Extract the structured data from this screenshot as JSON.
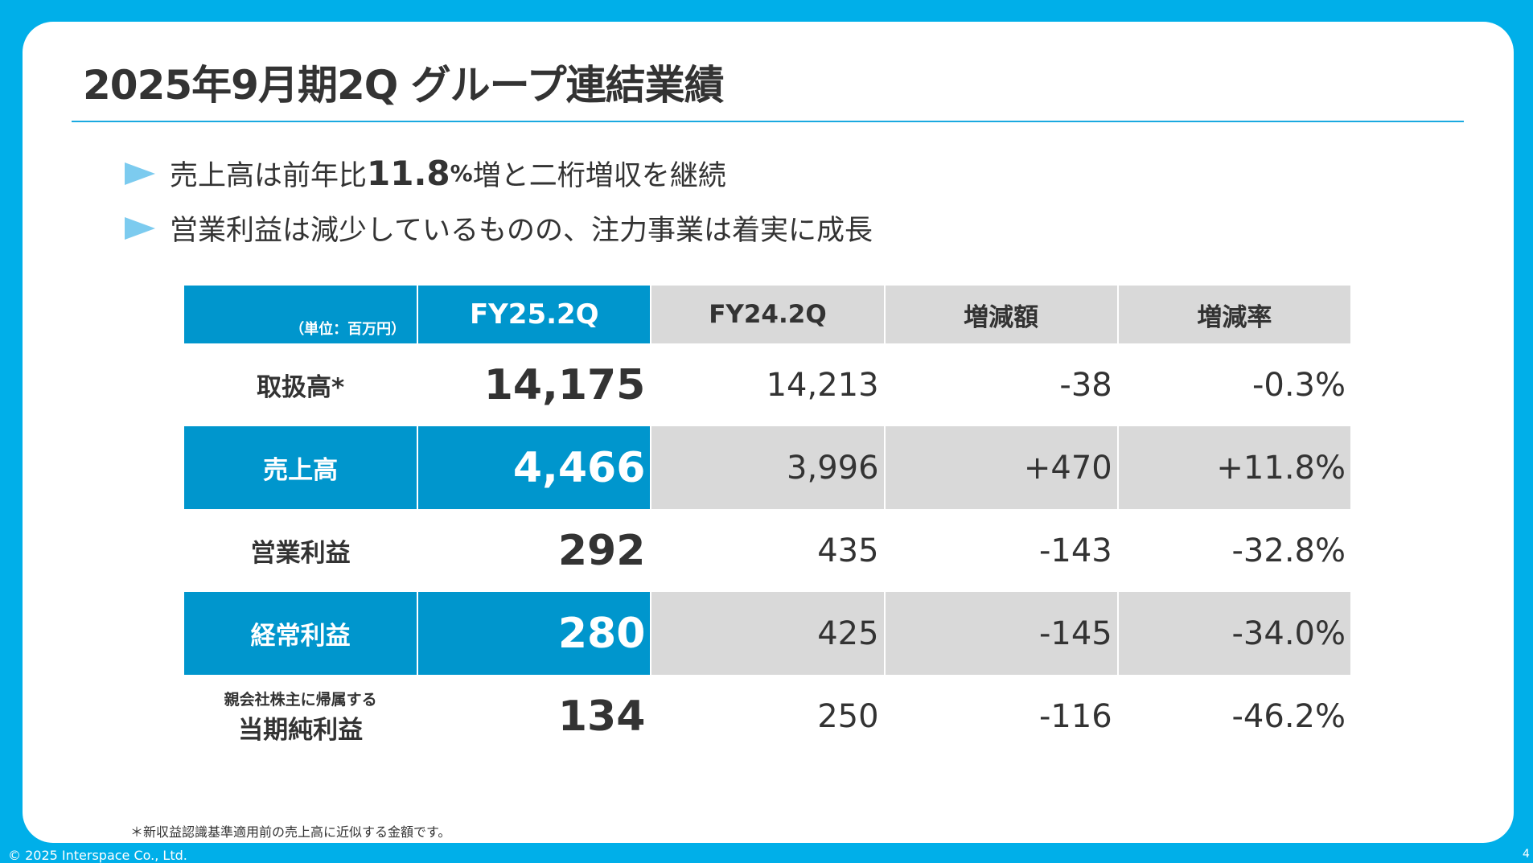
{
  "title": "2025年9月期2Q グループ連結業績",
  "bullets": [
    {
      "pre": "売上高は前年比",
      "num": "11.8",
      "pct": "%",
      "post": "増と二桁増収を継続"
    },
    {
      "text": "営業利益は減少しているものの、注力事業は着実に成長"
    }
  ],
  "table": {
    "unit": "（単位：百万円）",
    "headers": [
      "FY25.2Q",
      "FY24.2Q",
      "増減額",
      "増減率"
    ],
    "rows": [
      {
        "label": "取扱高*",
        "values": [
          "14,175",
          "14,213",
          "-38",
          "-0.3%"
        ]
      },
      {
        "label": "売上高",
        "values": [
          "4,466",
          "3,996",
          "+470",
          "+11.8%"
        ]
      },
      {
        "label": "営業利益",
        "values": [
          "292",
          "435",
          "-143",
          "-32.8%"
        ]
      },
      {
        "label": "経常利益",
        "values": [
          "280",
          "425",
          "-145",
          "-34.0%"
        ]
      },
      {
        "sublabel": "親会社株主に帰属する",
        "label": "当期純利益",
        "values": [
          "134",
          "250",
          "-116",
          "-46.2%"
        ]
      }
    ]
  },
  "footnote": "＊新収益認識基準適用前の売上高に近似する金額です。",
  "copyright": "© 2025 Interspace Co., Ltd.",
  "page": "4",
  "colors": {
    "background": "#00afe9",
    "header_blue": "#0096cd",
    "gray": "#d9d9d9"
  }
}
